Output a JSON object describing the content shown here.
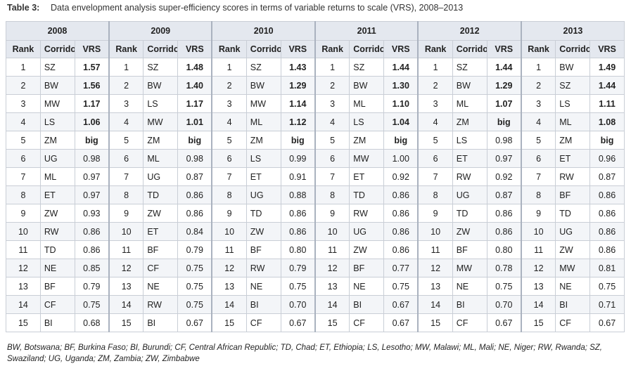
{
  "caption": {
    "label": "Table 3:",
    "title": "Data envelopment analysis super-efficiency scores in terms of variable returns to scale (VRS), 2008–2013"
  },
  "table": {
    "years": [
      "2008",
      "2009",
      "2010",
      "2011",
      "2012",
      "2013"
    ],
    "columns": [
      "Rank",
      "Corridor",
      "VRS"
    ],
    "rows": [
      [
        "1",
        "SZ",
        "1.57",
        "1",
        "SZ",
        "1.48",
        "1",
        "SZ",
        "1.43",
        "1",
        "SZ",
        "1.44",
        "1",
        "SZ",
        "1.44",
        "1",
        "BW",
        "1.49"
      ],
      [
        "2",
        "BW",
        "1.56",
        "2",
        "BW",
        "1.40",
        "2",
        "BW",
        "1.29",
        "2",
        "BW",
        "1.30",
        "2",
        "BW",
        "1.29",
        "2",
        "SZ",
        "1.44"
      ],
      [
        "3",
        "MW",
        "1.17",
        "3",
        "LS",
        "1.17",
        "3",
        "MW",
        "1.14",
        "3",
        "ML",
        "1.10",
        "3",
        "ML",
        "1.07",
        "3",
        "LS",
        "1.11"
      ],
      [
        "4",
        "LS",
        "1.06",
        "4",
        "MW",
        "1.01",
        "4",
        "ML",
        "1.12",
        "4",
        "LS",
        "1.04",
        "4",
        "ZM",
        "big",
        "4",
        "ML",
        "1.08"
      ],
      [
        "5",
        "ZM",
        "big",
        "5",
        "ZM",
        "big",
        "5",
        "ZM",
        "big",
        "5",
        "ZM",
        "big",
        "5",
        "LS",
        "0.98",
        "5",
        "ZM",
        "big"
      ],
      [
        "6",
        "UG",
        "0.98",
        "6",
        "ML",
        "0.98",
        "6",
        "LS",
        "0.99",
        "6",
        "MW",
        "1.00",
        "6",
        "ET",
        "0.97",
        "6",
        "ET",
        "0.96"
      ],
      [
        "7",
        "ML",
        "0.97",
        "7",
        "UG",
        "0.87",
        "7",
        "ET",
        "0.91",
        "7",
        "ET",
        "0.92",
        "7",
        "RW",
        "0.92",
        "7",
        "RW",
        "0.87"
      ],
      [
        "8",
        "ET",
        "0.97",
        "8",
        "TD",
        "0.86",
        "8",
        "UG",
        "0.88",
        "8",
        "TD",
        "0.86",
        "8",
        "UG",
        "0.87",
        "8",
        "BF",
        "0.86"
      ],
      [
        "9",
        "ZW",
        "0.93",
        "9",
        "ZW",
        "0.86",
        "9",
        "TD",
        "0.86",
        "9",
        "RW",
        "0.86",
        "9",
        "TD",
        "0.86",
        "9",
        "TD",
        "0.86"
      ],
      [
        "10",
        "RW",
        "0.86",
        "10",
        "ET",
        "0.84",
        "10",
        "ZW",
        "0.86",
        "10",
        "UG",
        "0.86",
        "10",
        "ZW",
        "0.86",
        "10",
        "UG",
        "0.86"
      ],
      [
        "11",
        "TD",
        "0.86",
        "11",
        "BF",
        "0.79",
        "11",
        "BF",
        "0.80",
        "11",
        "ZW",
        "0.86",
        "11",
        "BF",
        "0.80",
        "11",
        "ZW",
        "0.86"
      ],
      [
        "12",
        "NE",
        "0.85",
        "12",
        "CF",
        "0.75",
        "12",
        "RW",
        "0.79",
        "12",
        "BF",
        "0.77",
        "12",
        "MW",
        "0.78",
        "12",
        "MW",
        "0.81"
      ],
      [
        "13",
        "BF",
        "0.79",
        "13",
        "NE",
        "0.75",
        "13",
        "NE",
        "0.75",
        "13",
        "NE",
        "0.75",
        "13",
        "NE",
        "0.75",
        "13",
        "NE",
        "0.75"
      ],
      [
        "14",
        "CF",
        "0.75",
        "14",
        "RW",
        "0.75",
        "14",
        "BI",
        "0.70",
        "14",
        "BI",
        "0.67",
        "14",
        "BI",
        "0.70",
        "14",
        "BI",
        "0.71"
      ],
      [
        "15",
        "BI",
        "0.68",
        "15",
        "BI",
        "0.67",
        "15",
        "CF",
        "0.67",
        "15",
        "CF",
        "0.67",
        "15",
        "CF",
        "0.67",
        "15",
        "CF",
        "0.67"
      ]
    ]
  },
  "footnote": "BW, Botswana; BF, Burkina Faso; BI, Burundi; CF, Central African Republic; TD, Chad; ET, Ethiopia; LS, Lesotho; MW, Malawi; ML, Mali; NE, Niger; RW, Rwanda; SZ, Swaziland; UG, Uganda; ZM, Zambia; ZW, Zimbabwe"
}
